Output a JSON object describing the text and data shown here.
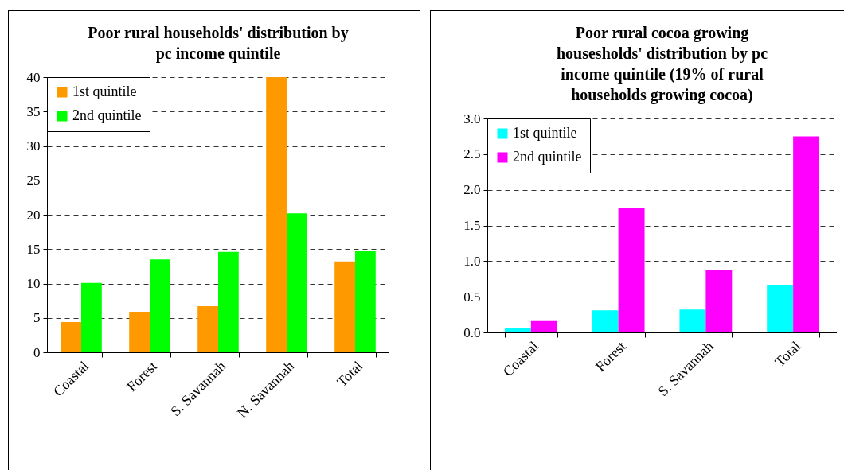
{
  "chart_data": [
    {
      "type": "bar",
      "title": "Poor rural households' distribution by pc income quintile",
      "categories": [
        "Coastal",
        "Forest",
        "S. Savannah",
        "N. Savannah",
        "Total"
      ],
      "series": [
        {
          "name": "1st quintile",
          "color": "#ff9900",
          "values": [
            4.4,
            5.9,
            6.7,
            40.0,
            13.2
          ]
        },
        {
          "name": "2nd quintile",
          "color": "#00ff00",
          "values": [
            10.1,
            13.5,
            14.6,
            20.2,
            14.8
          ]
        }
      ],
      "ylim": [
        0,
        40
      ],
      "yticks": [
        0,
        5,
        10,
        15,
        20,
        25,
        30,
        35,
        40
      ],
      "grid": "y",
      "legend": "top left"
    },
    {
      "type": "bar",
      "title": "Poor rural cocoa growing housesholds' distribution by pc income quintile (19% of rural households growing cocoa)",
      "categories": [
        "Coastal",
        "Forest",
        "S. Savannah",
        "Total"
      ],
      "series": [
        {
          "name": "1st quintile",
          "color": "#00ffff",
          "values": [
            0.06,
            0.31,
            0.32,
            0.66
          ]
        },
        {
          "name": "2nd quintile",
          "color": "#ff00ff",
          "values": [
            0.16,
            1.74,
            0.87,
            2.75
          ]
        }
      ],
      "ylim": [
        0,
        3.0
      ],
      "yticks": [
        {
          "value": 0,
          "label": "0.0"
        },
        {
          "value": 0.5,
          "label": "0.5"
        },
        {
          "value": 1,
          "label": "1.0"
        },
        {
          "value": 1.5,
          "label": "1.5"
        },
        {
          "value": 2,
          "label": "2.0"
        },
        {
          "value": 2.5,
          "label": "2.5"
        },
        {
          "value": 3,
          "label": "3.0"
        }
      ],
      "grid": "y",
      "legend": "top left"
    }
  ]
}
